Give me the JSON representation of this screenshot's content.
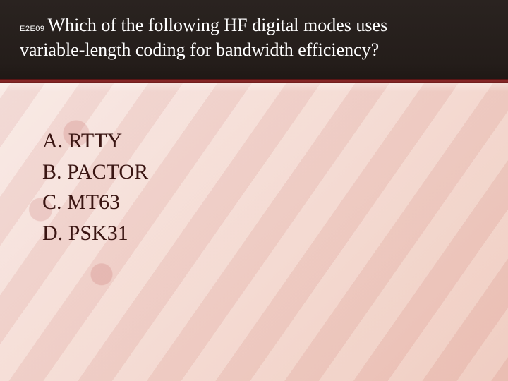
{
  "header": {
    "question_code": "E2E09",
    "question_text_line1": "Which of the following HF digital modes uses",
    "question_text_line2": "variable-length coding for bandwidth efficiency?"
  },
  "answers": [
    {
      "letter": "A.",
      "text": "RTTY"
    },
    {
      "letter": "B.",
      "text": "PACTOR"
    },
    {
      "letter": "C.",
      "text": "MT63"
    },
    {
      "letter": "D.",
      "text": "PSK31"
    }
  ],
  "style": {
    "header_bg": "#241d1a",
    "divider_color": "#7a1f1f",
    "body_bg_start": "#f9ece8",
    "body_bg_end": "#efc9bd",
    "text_color": "#3a1512",
    "header_text_color": "#ffffff",
    "qcode_fontsize": 11,
    "qtext_fontsize": 26,
    "answer_fontsize": 30
  }
}
